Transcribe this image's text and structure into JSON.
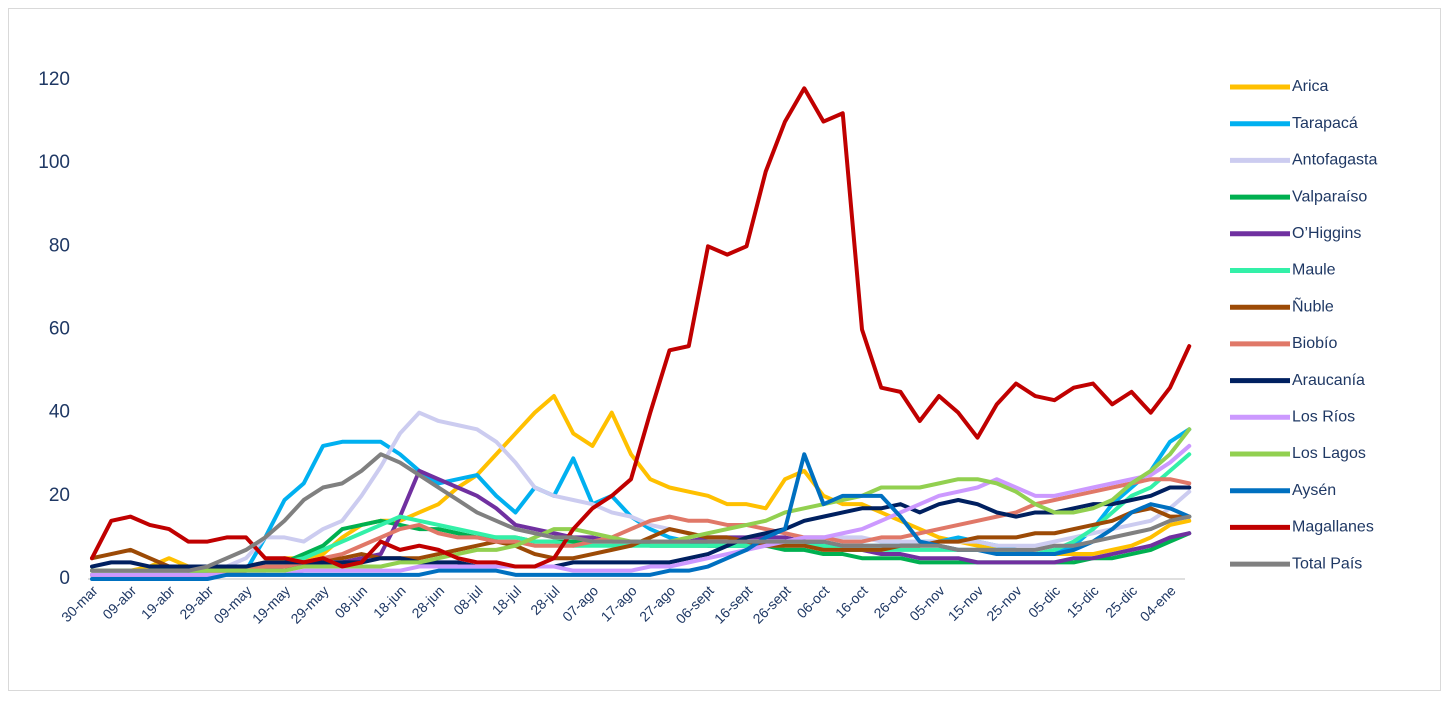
{
  "chart_data": {
    "type": "line",
    "categories": [
      "30-mar",
      null,
      "09-abr",
      null,
      "19-abr",
      null,
      "29-abr",
      null,
      "09-may",
      null,
      "19-may",
      null,
      "29-may",
      null,
      "08-jun",
      null,
      "18-jun",
      null,
      "28-jun",
      null,
      "08-jul",
      null,
      "18-jul",
      null,
      "28-jul",
      null,
      "07-ago",
      null,
      "17-ago",
      null,
      "27-ago",
      null,
      "06-sept",
      null,
      "16-sept",
      null,
      "26-sept",
      null,
      "06-oct",
      null,
      "16-oct",
      null,
      "26-oct",
      null,
      "05-nov",
      null,
      "15-nov",
      null,
      "25-nov",
      null,
      "05-dic",
      null,
      "15-dic",
      null,
      "25-dic",
      null,
      "04-ene",
      null
    ],
    "ylim": [
      0,
      130
    ],
    "yticks": [
      0,
      20,
      40,
      60,
      80,
      100,
      120
    ],
    "grid": false,
    "legend": "right",
    "series": [
      {
        "name": "Arica",
        "color": "#ffc000",
        "values": [
          2,
          2,
          2,
          3,
          5,
          3,
          2,
          2,
          3,
          4,
          5,
          5,
          6,
          10,
          13,
          14,
          14,
          16,
          18,
          22,
          25,
          30,
          35,
          40,
          44,
          35,
          32,
          40,
          30,
          24,
          22,
          21,
          20,
          18,
          18,
          17,
          24,
          26,
          20,
          18,
          18,
          16,
          14,
          12,
          10,
          9,
          8,
          7,
          7,
          6,
          6,
          6,
          6,
          7,
          8,
          10,
          13,
          14
        ]
      },
      {
        "name": "Tarapacá",
        "color": "#00b0f0",
        "values": [
          1,
          1,
          1,
          1,
          1,
          1,
          1,
          1,
          2,
          10,
          19,
          23,
          32,
          33,
          33,
          33,
          30,
          26,
          23,
          24,
          25,
          20,
          16,
          22,
          20,
          29,
          18,
          20,
          15,
          12,
          10,
          9,
          8,
          8,
          8,
          8,
          9,
          9,
          8,
          8,
          8,
          8,
          8,
          9,
          9,
          10,
          9,
          8,
          7,
          6,
          6,
          8,
          12,
          18,
          22,
          26,
          33,
          36
        ]
      },
      {
        "name": "Antofagasta",
        "color": "#ccccf0",
        "values": [
          1,
          1,
          1,
          1,
          2,
          2,
          2,
          3,
          5,
          10,
          10,
          9,
          12,
          14,
          20,
          27,
          35,
          40,
          38,
          37,
          36,
          33,
          28,
          22,
          20,
          19,
          18,
          16,
          15,
          13,
          12,
          11,
          10,
          10,
          9,
          9,
          9,
          10,
          10,
          10,
          10,
          9,
          9,
          9,
          9,
          9,
          9,
          8,
          8,
          8,
          9,
          10,
          11,
          12,
          13,
          14,
          17,
          21
        ]
      },
      {
        "name": "Valparaíso",
        "color": "#00b050",
        "values": [
          2,
          2,
          2,
          2,
          2,
          2,
          2,
          2,
          2,
          3,
          4,
          6,
          8,
          12,
          13,
          14,
          13,
          12,
          12,
          11,
          10,
          10,
          10,
          9,
          9,
          9,
          9,
          9,
          9,
          8,
          8,
          8,
          8,
          8,
          8,
          8,
          7,
          7,
          6,
          6,
          5,
          5,
          5,
          4,
          4,
          4,
          4,
          4,
          4,
          4,
          4,
          4,
          5,
          5,
          6,
          7,
          9,
          11
        ]
      },
      {
        "name": "O’Higgins",
        "color": "#7030a0",
        "values": [
          1,
          1,
          1,
          1,
          1,
          1,
          1,
          1,
          2,
          2,
          3,
          3,
          4,
          4,
          5,
          6,
          15,
          26,
          24,
          22,
          20,
          17,
          13,
          12,
          11,
          10,
          10,
          9,
          9,
          9,
          9,
          9,
          10,
          10,
          10,
          10,
          10,
          9,
          8,
          7,
          7,
          6,
          6,
          5,
          5,
          5,
          4,
          4,
          4,
          4,
          4,
          5,
          5,
          6,
          7,
          8,
          10,
          11
        ]
      },
      {
        "name": "Maule",
        "color": "#33f0a8",
        "values": [
          1,
          1,
          1,
          1,
          1,
          1,
          2,
          2,
          2,
          3,
          4,
          5,
          7,
          9,
          11,
          13,
          15,
          14,
          13,
          12,
          11,
          10,
          10,
          9,
          9,
          8,
          8,
          8,
          8,
          8,
          8,
          8,
          8,
          8,
          8,
          8,
          8,
          8,
          8,
          7,
          7,
          7,
          7,
          7,
          7,
          7,
          7,
          7,
          6,
          6,
          7,
          9,
          12,
          16,
          20,
          22,
          26,
          30
        ]
      },
      {
        "name": "Ñuble",
        "color": "#9c4a06",
        "values": [
          5,
          6,
          7,
          5,
          3,
          2,
          2,
          2,
          2,
          3,
          3,
          4,
          5,
          5,
          6,
          5,
          5,
          5,
          6,
          7,
          8,
          9,
          8,
          6,
          5,
          5,
          6,
          7,
          8,
          10,
          12,
          11,
          10,
          10,
          9,
          8,
          8,
          8,
          7,
          7,
          7,
          7,
          8,
          8,
          9,
          9,
          10,
          10,
          10,
          11,
          11,
          12,
          13,
          14,
          16,
          17,
          15,
          15
        ]
      },
      {
        "name": "Biobío",
        "color": "#e07868",
        "values": [
          1,
          1,
          1,
          1,
          1,
          1,
          1,
          2,
          2,
          3,
          3,
          4,
          5,
          6,
          8,
          10,
          12,
          13,
          11,
          10,
          10,
          9,
          9,
          8,
          8,
          8,
          9,
          10,
          12,
          14,
          15,
          14,
          14,
          13,
          13,
          12,
          11,
          10,
          10,
          9,
          9,
          10,
          10,
          11,
          12,
          13,
          14,
          15,
          16,
          18,
          19,
          20,
          21,
          22,
          23,
          24,
          24,
          23
        ]
      },
      {
        "name": "Araucanía",
        "color": "#002060",
        "values": [
          3,
          4,
          4,
          3,
          3,
          3,
          3,
          3,
          3,
          4,
          4,
          4,
          4,
          4,
          4,
          5,
          5,
          4,
          4,
          4,
          3,
          3,
          3,
          3,
          3,
          4,
          4,
          4,
          4,
          4,
          4,
          5,
          6,
          8,
          10,
          11,
          12,
          14,
          15,
          16,
          17,
          17,
          18,
          16,
          18,
          19,
          18,
          16,
          15,
          16,
          16,
          17,
          18,
          18,
          19,
          20,
          22,
          22
        ]
      },
      {
        "name": "Los Ríos",
        "color": "#cc99ff",
        "values": [
          1,
          1,
          1,
          1,
          1,
          1,
          1,
          1,
          1,
          1,
          1,
          2,
          2,
          2,
          2,
          2,
          2,
          3,
          3,
          3,
          3,
          3,
          3,
          3,
          3,
          2,
          2,
          2,
          2,
          3,
          3,
          4,
          5,
          6,
          7,
          8,
          9,
          10,
          10,
          11,
          12,
          14,
          16,
          18,
          20,
          21,
          22,
          24,
          22,
          20,
          20,
          21,
          22,
          23,
          24,
          25,
          28,
          32
        ]
      },
      {
        "name": "Los Lagos",
        "color": "#92d050",
        "values": [
          2,
          2,
          2,
          2,
          2,
          2,
          2,
          2,
          2,
          2,
          2,
          3,
          3,
          3,
          3,
          3,
          4,
          4,
          5,
          6,
          7,
          7,
          8,
          10,
          12,
          12,
          11,
          10,
          9,
          9,
          9,
          10,
          11,
          12,
          13,
          14,
          16,
          17,
          18,
          19,
          20,
          22,
          22,
          22,
          23,
          24,
          24,
          23,
          21,
          18,
          16,
          16,
          17,
          19,
          23,
          26,
          30,
          36
        ]
      },
      {
        "name": "Aysén",
        "color": "#0070c0",
        "values": [
          0,
          0,
          0,
          0,
          0,
          0,
          0,
          1,
          1,
          1,
          1,
          1,
          1,
          1,
          1,
          1,
          1,
          1,
          2,
          2,
          2,
          2,
          1,
          1,
          1,
          1,
          1,
          1,
          1,
          1,
          2,
          2,
          3,
          5,
          7,
          10,
          12,
          30,
          18,
          20,
          20,
          20,
          15,
          9,
          8,
          7,
          7,
          6,
          6,
          6,
          6,
          7,
          9,
          12,
          16,
          18,
          17,
          15
        ]
      },
      {
        "name": "Magallanes",
        "color": "#c00000",
        "values": [
          5,
          14,
          15,
          13,
          12,
          9,
          9,
          10,
          10,
          5,
          5,
          4,
          5,
          3,
          4,
          9,
          7,
          8,
          7,
          5,
          4,
          4,
          3,
          3,
          5,
          12,
          17,
          20,
          24,
          40,
          55,
          56,
          80,
          78,
          80,
          98,
          110,
          118,
          110,
          112,
          60,
          46,
          45,
          38,
          44,
          40,
          34,
          42,
          47,
          44,
          43,
          46,
          47,
          42,
          45,
          40,
          46,
          56
        ]
      },
      {
        "name": "Total País",
        "color": "#808080",
        "values": [
          2,
          2,
          2,
          2,
          2,
          2,
          3,
          5,
          7,
          10,
          14,
          19,
          22,
          23,
          26,
          30,
          28,
          25,
          22,
          19,
          16,
          14,
          12,
          11,
          10,
          10,
          9,
          9,
          9,
          9,
          9,
          9,
          9,
          9,
          9,
          9,
          9,
          9,
          9,
          8,
          8,
          8,
          8,
          8,
          8,
          7,
          7,
          7,
          7,
          7,
          8,
          8,
          9,
          10,
          11,
          12,
          14,
          15
        ]
      }
    ]
  }
}
